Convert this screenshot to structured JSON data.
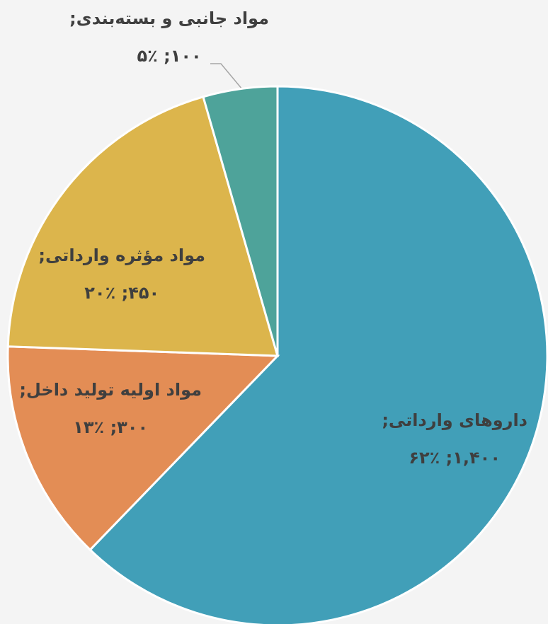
{
  "chart_data": {
    "type": "pie",
    "categories": [
      "داروهای وارداتی;",
      "مواد اولیه تولید داخل;",
      "مواد مؤثره وارداتی;",
      "مواد جانبی و بسته‌بندی;"
    ],
    "values": [
      1400,
      300,
      450,
      100
    ],
    "value_labels": [
      "۱,۴۰۰;",
      "۳۰۰;",
      "۴۵۰;",
      "۱۰۰;"
    ],
    "percents": [
      62,
      13,
      20,
      5
    ],
    "percent_labels": [
      "۶۲٪",
      "۱۳٪",
      "۲۰٪",
      "۵٪"
    ],
    "colors": [
      "#419fb8",
      "#e38d55",
      "#dcb54c",
      "#4ea39a"
    ]
  }
}
